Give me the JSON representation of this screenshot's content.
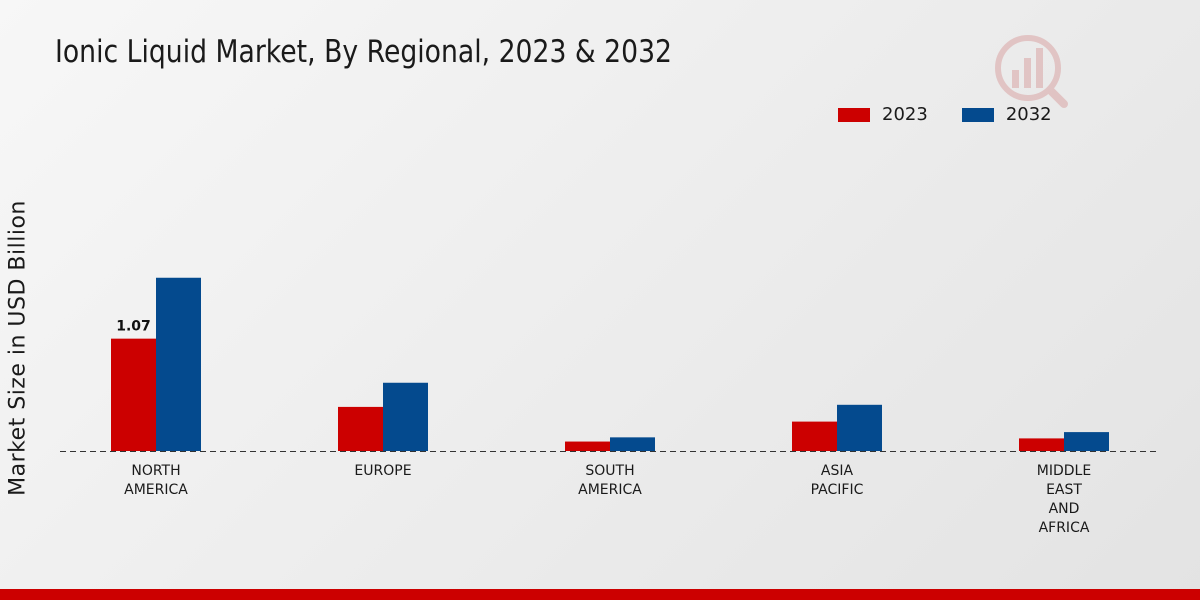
{
  "chart_data": {
    "type": "bar",
    "title": "Ionic Liquid Market, By Regional, 2023 & 2032",
    "xlabel": "",
    "ylabel": "Market Size in USD Billion",
    "ylim": [
      0,
      2.5
    ],
    "grid": false,
    "legend_position": "top-right",
    "categories": [
      [
        "NORTH",
        "AMERICA"
      ],
      [
        "EUROPE"
      ],
      [
        "SOUTH",
        "AMERICA"
      ],
      [
        "ASIA",
        "PACIFIC"
      ],
      [
        "MIDDLE",
        "EAST",
        "AND",
        "AFRICA"
      ]
    ],
    "series": [
      {
        "name": "2023",
        "color": "#cc0000",
        "values": [
          1.07,
          0.42,
          0.09,
          0.28,
          0.12
        ],
        "data_labels": [
          "1.07",
          null,
          null,
          null,
          null
        ]
      },
      {
        "name": "2032",
        "color": "#044a8e",
        "values": [
          1.65,
          0.65,
          0.13,
          0.44,
          0.18
        ],
        "data_labels": [
          null,
          null,
          null,
          null,
          null
        ]
      }
    ]
  }
}
